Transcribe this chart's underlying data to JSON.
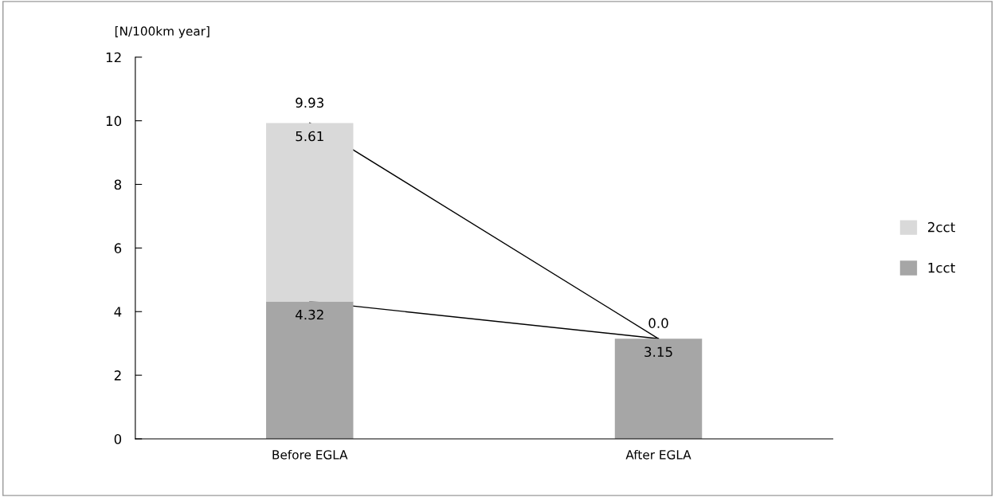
{
  "chart_data": {
    "type": "bar",
    "stacked": true,
    "ylabel": "[N/100km year]",
    "categories": [
      "Before EGLA",
      "After EGLA"
    ],
    "series": [
      {
        "name": "1cct",
        "color": "#a6a6a6",
        "values": [
          4.32,
          3.15
        ],
        "value_labels": [
          "4.32",
          "3.15"
        ]
      },
      {
        "name": "2cct",
        "color": "#d9d9d9",
        "values": [
          5.61,
          0.0
        ],
        "value_labels": [
          "5.61",
          "0.0"
        ]
      },
      {
        "type": "line",
        "color": "#000000",
        "values": [
          4.32,
          3.15
        ]
      },
      {
        "type": "line",
        "color": "#000000",
        "values": [
          9.93,
          3.15
        ]
      }
    ],
    "totals": [
      "9.93",
      null
    ],
    "ylim": [
      0,
      12
    ],
    "yticks": [
      0,
      2,
      4,
      6,
      8,
      10,
      12
    ],
    "grid": false,
    "legend": "right"
  }
}
